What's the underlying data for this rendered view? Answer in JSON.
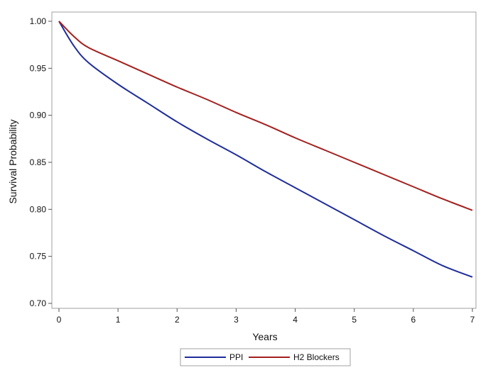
{
  "chart_data": {
    "type": "line",
    "title": "",
    "xlabel": "Years",
    "ylabel": "Survival Probability",
    "xlim": [
      0,
      7
    ],
    "ylim": [
      0.7,
      1.0
    ],
    "x_ticks": [
      "0",
      "1",
      "2",
      "3",
      "4",
      "5",
      "6",
      "7"
    ],
    "y_ticks": [
      "0.70",
      "0.75",
      "0.80",
      "0.85",
      "0.90",
      "0.95",
      "1.00"
    ],
    "grid": false,
    "legend_position": "bottom-center",
    "x": [
      0,
      0.25,
      0.5,
      1,
      1.5,
      2,
      2.5,
      3,
      3.5,
      4,
      4.5,
      5,
      5.5,
      6,
      6.5,
      7
    ],
    "series": [
      {
        "name": "PPI",
        "color": "#1f2d9a",
        "values": [
          1.0,
          0.974,
          0.956,
          0.933,
          0.913,
          0.893,
          0.875,
          0.858,
          0.84,
          0.823,
          0.806,
          0.789,
          0.772,
          0.756,
          0.74,
          0.728
        ]
      },
      {
        "name": "H2 Blockers",
        "color": "#a3201f",
        "values": [
          1.0,
          0.984,
          0.972,
          0.958,
          0.944,
          0.93,
          0.917,
          0.903,
          0.89,
          0.876,
          0.863,
          0.85,
          0.837,
          0.824,
          0.811,
          0.799
        ]
      }
    ]
  }
}
